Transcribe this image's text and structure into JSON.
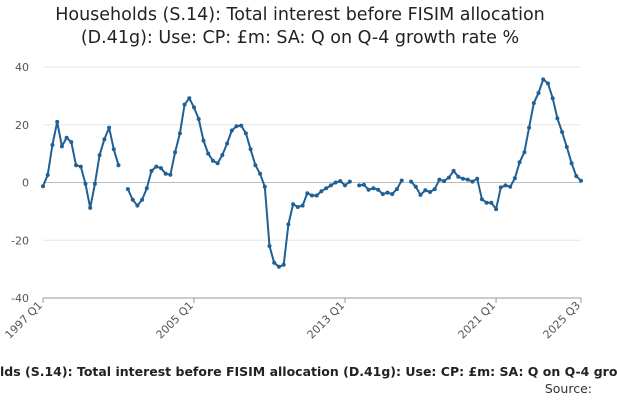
{
  "chart_data": {
    "type": "line",
    "title_lines": [
      "Households (S.14): Total interest before FISIM allocation",
      "(D.41g): Use: CP: £m: SA: Q on Q-4 growth rate %"
    ],
    "series_label": "lds (S.14): Total interest before FISIM allocation (D.41g): Use: CP: £m: SA: Q on Q-4 gro",
    "source_label": "Source:",
    "x_start": "1997 Q1",
    "x_end": "2025 Q3",
    "x_ticks": [
      "1997 Q1",
      "2005 Q1",
      "2013 Q1",
      "2021 Q1",
      "2025 Q3"
    ],
    "y_ticks": [
      "40",
      "20",
      "0",
      "-20",
      "-40"
    ],
    "ylim": [
      -40,
      40
    ],
    "grid": true,
    "color": "#206095",
    "series": [
      {
        "values": [
          -1.3,
          2.6,
          13,
          21,
          12.5,
          15.5,
          14,
          6,
          5.5,
          -0.5,
          -8.8,
          -0.5,
          9.5,
          15,
          19,
          11.5,
          6,
          null,
          -2.3,
          -6,
          -8,
          -6,
          -2,
          4,
          5.5,
          5,
          3,
          2.7,
          10.5,
          17,
          27,
          29.2,
          26,
          22,
          14.5,
          10,
          7.5,
          6.7,
          9.5,
          13.5,
          18,
          19.5,
          19.7,
          17,
          11.5,
          6,
          3,
          -1.5,
          -22,
          -27.8,
          -29.2,
          -28.5,
          -14.5,
          -7.5,
          -8.5,
          -8,
          -3.7,
          -4.5,
          -4.5,
          -3,
          -2,
          -1,
          0,
          0.5,
          -1,
          0.3,
          null,
          -1,
          -0.8,
          -2.5,
          -2,
          -2.5,
          -4,
          -3.5,
          -4,
          -2.3,
          0.7,
          null,
          0.3,
          -1.5,
          -4.3,
          -2.7,
          -3.3,
          -2.3,
          1,
          0.5,
          1.7,
          4,
          2,
          1.3,
          1,
          0.3,
          1.3,
          -5.8,
          -7,
          -7,
          -9.2,
          -1.7,
          -1,
          -1.5,
          1.5,
          7,
          10.5,
          19,
          27.5,
          31,
          35.7,
          34.3,
          29.2,
          22.2,
          17.5,
          12.3,
          6.7,
          2.2,
          0.6
        ]
      }
    ]
  }
}
